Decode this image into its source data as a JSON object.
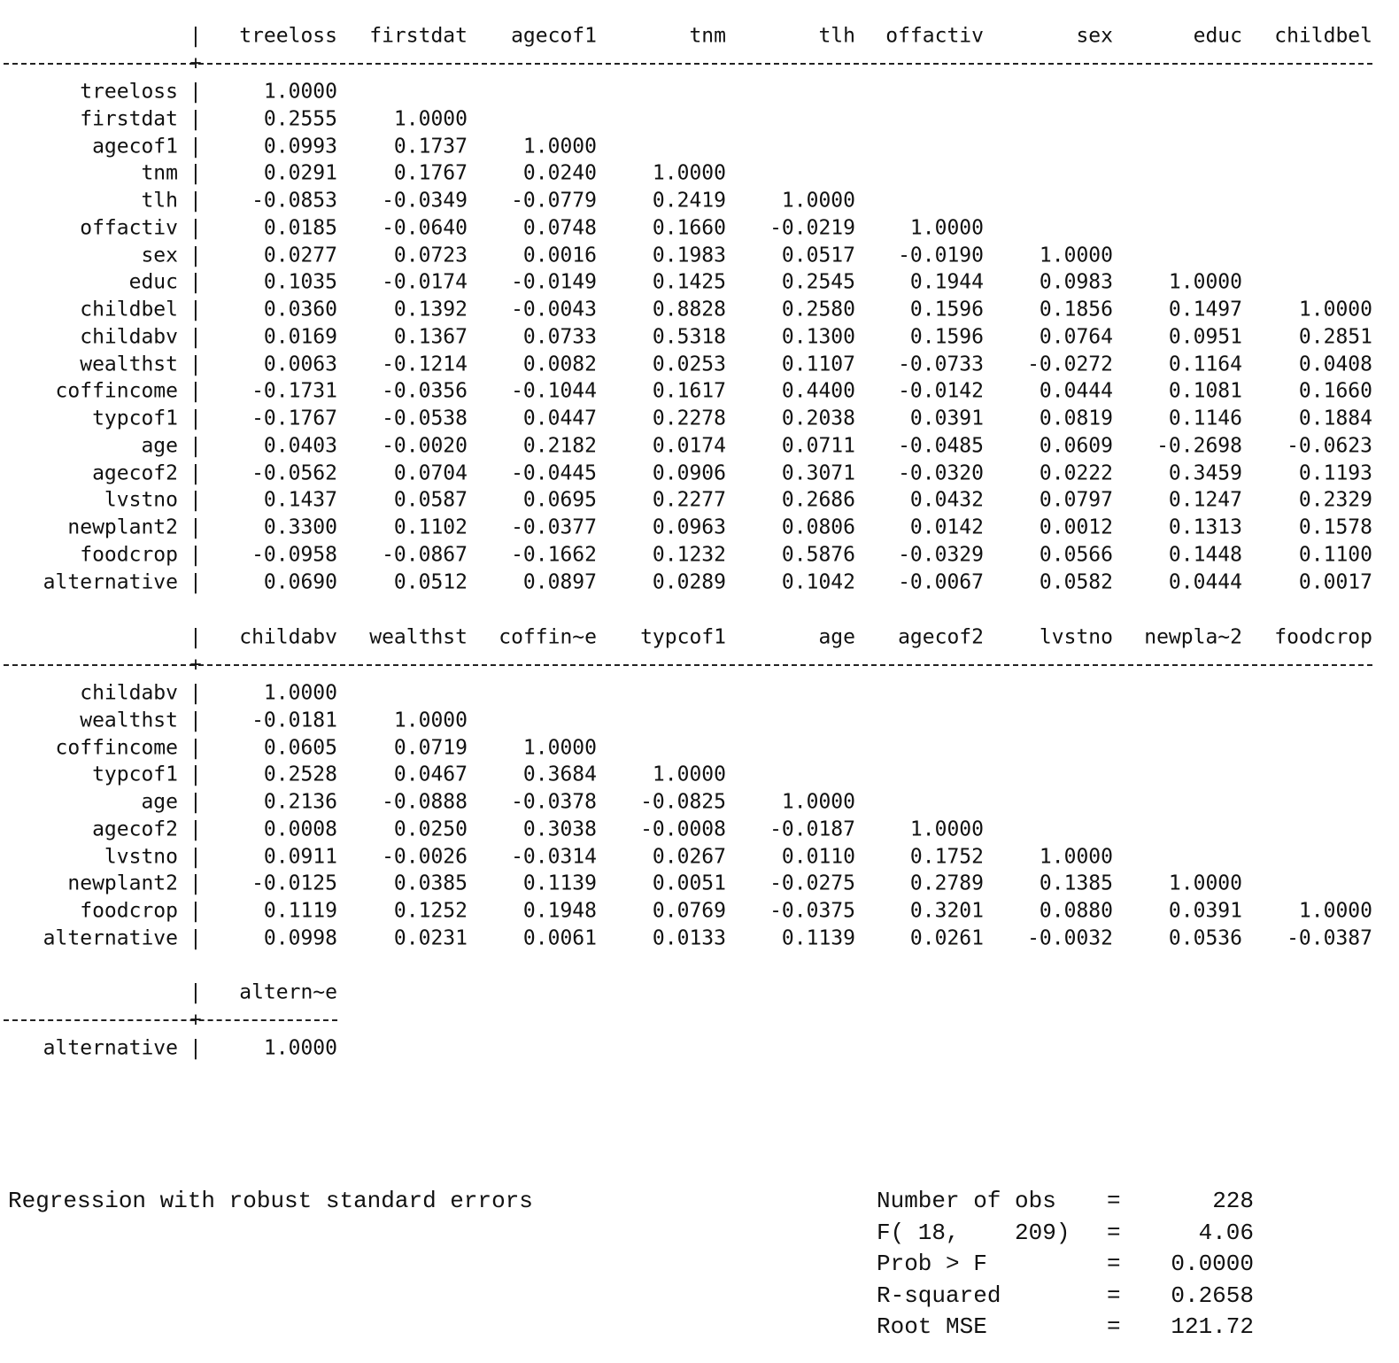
{
  "blocks": [
    {
      "columns": [
        "treeloss",
        "firstdat",
        "agecof1",
        "tnm",
        "tlh",
        "offactiv",
        "sex",
        "educ",
        "childbel"
      ],
      "rows": [
        {
          "label": "treeloss",
          "values": [
            "1.0000"
          ]
        },
        {
          "label": "firstdat",
          "values": [
            "0.2555",
            "1.0000"
          ]
        },
        {
          "label": "agecof1",
          "values": [
            "0.0993",
            "0.1737",
            "1.0000"
          ]
        },
        {
          "label": "tnm",
          "values": [
            "0.0291",
            "0.1767",
            "0.0240",
            "1.0000"
          ]
        },
        {
          "label": "tlh",
          "values": [
            "-0.0853",
            "-0.0349",
            "-0.0779",
            "0.2419",
            "1.0000"
          ]
        },
        {
          "label": "offactiv",
          "values": [
            "0.0185",
            "-0.0640",
            "0.0748",
            "0.1660",
            "-0.0219",
            "1.0000"
          ]
        },
        {
          "label": "sex",
          "values": [
            "0.0277",
            "0.0723",
            "0.0016",
            "0.1983",
            "0.0517",
            "-0.0190",
            "1.0000"
          ]
        },
        {
          "label": "educ",
          "values": [
            "0.1035",
            "-0.0174",
            "-0.0149",
            "0.1425",
            "0.2545",
            "0.1944",
            "0.0983",
            "1.0000"
          ]
        },
        {
          "label": "childbel",
          "values": [
            "0.0360",
            "0.1392",
            "-0.0043",
            "0.8828",
            "0.2580",
            "0.1596",
            "0.1856",
            "0.1497",
            "1.0000"
          ]
        },
        {
          "label": "childabv",
          "values": [
            "0.0169",
            "0.1367",
            "0.0733",
            "0.5318",
            "0.1300",
            "0.1596",
            "0.0764",
            "0.0951",
            "0.2851"
          ]
        },
        {
          "label": "wealthst",
          "values": [
            "0.0063",
            "-0.1214",
            "0.0082",
            "0.0253",
            "0.1107",
            "-0.0733",
            "-0.0272",
            "0.1164",
            "0.0408"
          ]
        },
        {
          "label": "coffincome",
          "values": [
            "-0.1731",
            "-0.0356",
            "-0.1044",
            "0.1617",
            "0.4400",
            "-0.0142",
            "0.0444",
            "0.1081",
            "0.1660"
          ]
        },
        {
          "label": "typcof1",
          "values": [
            "-0.1767",
            "-0.0538",
            "0.0447",
            "0.2278",
            "0.2038",
            "0.0391",
            "0.0819",
            "0.1146",
            "0.1884"
          ]
        },
        {
          "label": "age",
          "values": [
            "0.0403",
            "-0.0020",
            "0.2182",
            "0.0174",
            "0.0711",
            "-0.0485",
            "0.0609",
            "-0.2698",
            "-0.0623"
          ]
        },
        {
          "label": "agecof2",
          "values": [
            "-0.0562",
            "0.0704",
            "-0.0445",
            "0.0906",
            "0.3071",
            "-0.0320",
            "0.0222",
            "0.3459",
            "0.1193"
          ]
        },
        {
          "label": "lvstno",
          "values": [
            "0.1437",
            "0.0587",
            "0.0695",
            "0.2277",
            "0.2686",
            "0.0432",
            "0.0797",
            "0.1247",
            "0.2329"
          ]
        },
        {
          "label": "newplant2",
          "values": [
            "0.3300",
            "0.1102",
            "-0.0377",
            "0.0963",
            "0.0806",
            "0.0142",
            "0.0012",
            "0.1313",
            "0.1578"
          ]
        },
        {
          "label": "foodcrop",
          "values": [
            "-0.0958",
            "-0.0867",
            "-0.1662",
            "0.1232",
            "0.5876",
            "-0.0329",
            "0.0566",
            "0.1448",
            "0.1100"
          ]
        },
        {
          "label": "alternative",
          "values": [
            "0.0690",
            "0.0512",
            "0.0897",
            "0.0289",
            "0.1042",
            "-0.0067",
            "0.0582",
            "0.0444",
            "0.0017"
          ]
        }
      ]
    },
    {
      "columns": [
        "childabv",
        "wealthst",
        "coffin~e",
        "typcof1",
        "age",
        "agecof2",
        "lvstno",
        "newpla~2",
        "foodcrop"
      ],
      "rows": [
        {
          "label": "childabv",
          "values": [
            "1.0000"
          ]
        },
        {
          "label": "wealthst",
          "values": [
            "-0.0181",
            "1.0000"
          ]
        },
        {
          "label": "coffincome",
          "values": [
            "0.0605",
            "0.0719",
            "1.0000"
          ]
        },
        {
          "label": "typcof1",
          "values": [
            "0.2528",
            "0.0467",
            "0.3684",
            "1.0000"
          ]
        },
        {
          "label": "age",
          "values": [
            "0.2136",
            "-0.0888",
            "-0.0378",
            "-0.0825",
            "1.0000"
          ]
        },
        {
          "label": "agecof2",
          "values": [
            "0.0008",
            "0.0250",
            "0.3038",
            "-0.0008",
            "-0.0187",
            "1.0000"
          ]
        },
        {
          "label": "lvstno",
          "values": [
            "0.0911",
            "-0.0026",
            "-0.0314",
            "0.0267",
            "0.0110",
            "0.1752",
            "1.0000"
          ]
        },
        {
          "label": "newplant2",
          "values": [
            "-0.0125",
            "0.0385",
            "0.1139",
            "0.0051",
            "-0.0275",
            "0.2789",
            "0.1385",
            "1.0000"
          ]
        },
        {
          "label": "foodcrop",
          "values": [
            "0.1119",
            "0.1252",
            "0.1948",
            "0.0769",
            "-0.0375",
            "0.3201",
            "0.0880",
            "0.0391",
            "1.0000"
          ]
        },
        {
          "label": "alternative",
          "values": [
            "0.0998",
            "0.0231",
            "0.0061",
            "0.0133",
            "0.1139",
            "0.0261",
            "-0.0032",
            "0.0536",
            "-0.0387"
          ]
        }
      ]
    },
    {
      "columns": [
        "altern~e"
      ],
      "rows": [
        {
          "label": "alternative",
          "values": [
            "1.0000"
          ]
        }
      ]
    }
  ],
  "regression": {
    "title": "Regression with robust standard errors",
    "stats": [
      {
        "label": "Number of obs",
        "eq": "=",
        "value": "228"
      },
      {
        "label": "F( 18,    209)",
        "eq": "=",
        "value": "4.06"
      },
      {
        "label": "Prob > F",
        "eq": "=",
        "value": "0.0000"
      },
      {
        "label": "R-squared",
        "eq": "=",
        "value": "0.2658"
      },
      {
        "label": "Root MSE",
        "eq": "=",
        "value": "121.72"
      }
    ]
  }
}
